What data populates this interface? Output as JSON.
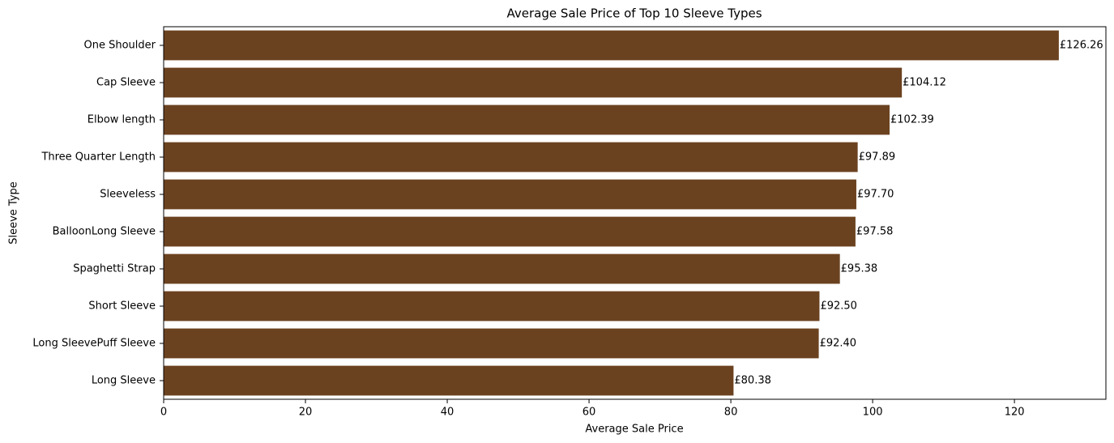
{
  "chart_data": {
    "type": "barh",
    "title": "Average Sale Price of Top 10 Sleeve Types",
    "x_label": "Average Sale Price",
    "y_label": "Sleeve Type",
    "categories": [
      "One Shoulder",
      "Cap Sleeve",
      "Elbow length",
      "Three Quarter Length",
      "Sleeveless",
      "BalloonLong Sleeve",
      "Spaghetti Strap",
      "Short Sleeve",
      "Long SleevePuff Sleeve",
      "Long Sleeve"
    ],
    "values": [
      126.26,
      104.12,
      102.39,
      97.89,
      97.7,
      97.58,
      95.38,
      92.5,
      92.4,
      80.38
    ],
    "value_labels": [
      "£126.26",
      "£104.12",
      "£102.39",
      "£97.89",
      "£97.70",
      "£97.58",
      "£95.38",
      "£92.50",
      "£92.40",
      "£80.38"
    ],
    "color": "#6b4220",
    "xlim": [
      0,
      132.9
    ],
    "xticks": [
      0,
      20,
      40,
      60,
      80,
      100,
      120
    ],
    "grid": false
  }
}
